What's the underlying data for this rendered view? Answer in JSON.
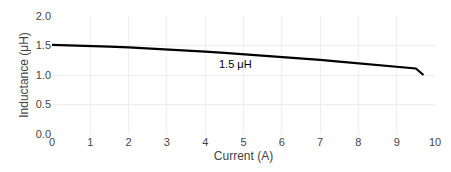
{
  "chart_data": {
    "type": "line",
    "x": [
      0,
      0.5,
      1.0,
      1.5,
      2.0,
      2.5,
      3.0,
      3.5,
      4.0,
      4.5,
      5.0,
      5.5,
      6.0,
      6.5,
      7.0,
      7.5,
      8.0,
      8.5,
      9.0,
      9.5,
      9.7
    ],
    "values": [
      1.51,
      1.505,
      1.495,
      1.482,
      1.468,
      1.452,
      1.435,
      1.416,
      1.396,
      1.375,
      1.353,
      1.33,
      1.306,
      1.281,
      1.255,
      1.228,
      1.2,
      1.171,
      1.141,
      1.11,
      1.0
    ],
    "color": "#000000",
    "xlabel": "Current (A)",
    "ylabel": "Inductance (μH)",
    "xlim": [
      0,
      10
    ],
    "ylim": [
      0,
      2.0
    ],
    "xticks": [
      0,
      1,
      2,
      3,
      4,
      5,
      6,
      7,
      8,
      9,
      10
    ],
    "yticks": [
      {
        "value": 0,
        "label": "0.0"
      },
      0.5,
      {
        "value": 1.0,
        "label": "1.0"
      },
      1.5,
      {
        "value": 2.0,
        "label": "2.0"
      }
    ],
    "annotations": [
      {
        "text": "1.5 μH",
        "x": 4.3,
        "y": 1.18
      }
    ],
    "grid": true
  }
}
